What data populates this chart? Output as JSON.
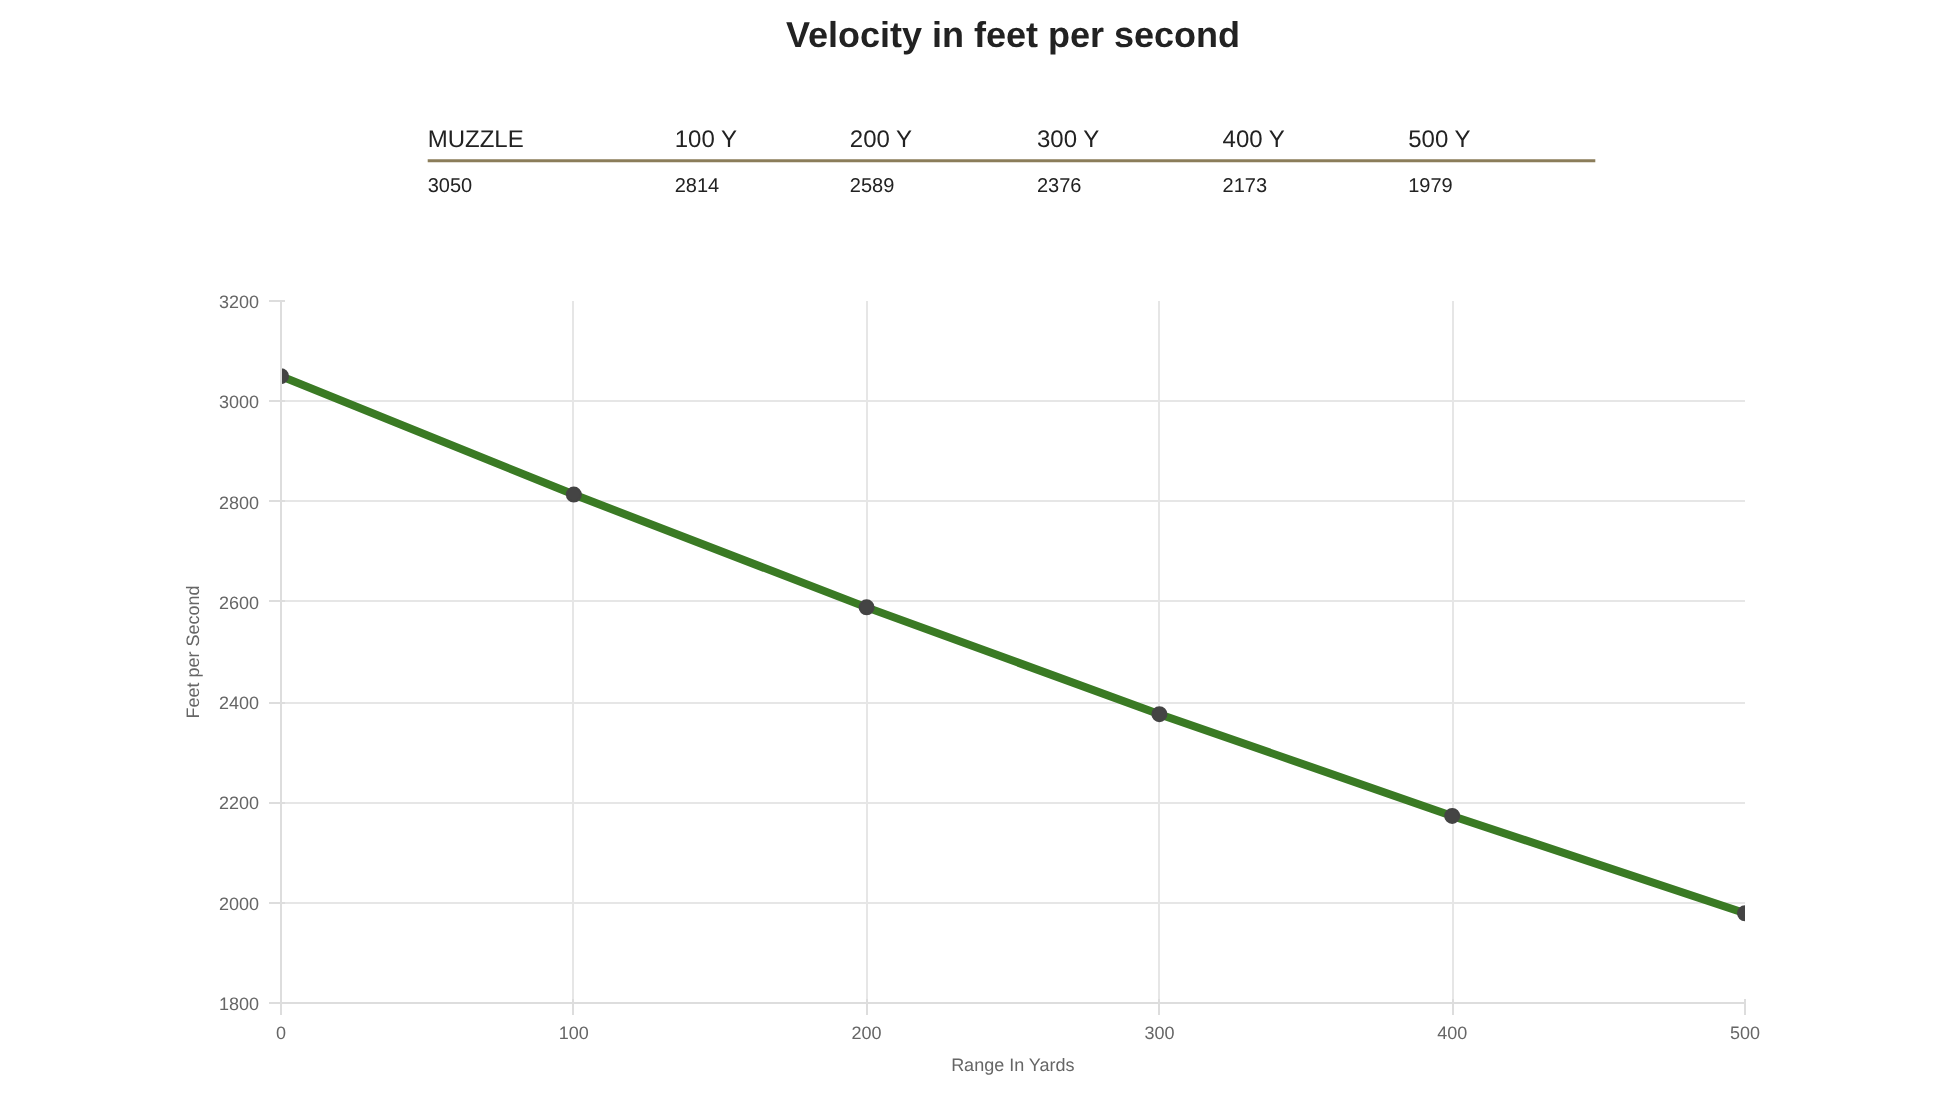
{
  "chart_data": {
    "type": "line",
    "title": "Velocity in feet per second",
    "annotations": [
      "MUZZLE",
      "100 Y",
      "200 Y",
      "300 Y",
      "400 Y",
      "500 Y",
      "3050",
      "2814",
      "2589",
      "2376",
      "2173",
      "1979"
    ],
    "x": [
      0,
      100,
      200,
      300,
      400,
      500
    ],
    "series": [
      {
        "color": "#3a7a24",
        "values": [
          3050,
          2814,
          2589,
          2376,
          2173,
          1979
        ]
      }
    ],
    "xlabel": "Range In Yards",
    "ylabel": "Feet per Second",
    "xlim": [
      0,
      500
    ],
    "xticks": [
      0,
      100,
      200,
      300,
      400,
      500
    ],
    "ylim": [
      1800,
      3200
    ],
    "yticks": [
      1800,
      2000,
      2200,
      2400,
      2600,
      2800,
      3000,
      3200
    ],
    "grid": true,
    "marker": "circle",
    "line_style": "solid"
  }
}
